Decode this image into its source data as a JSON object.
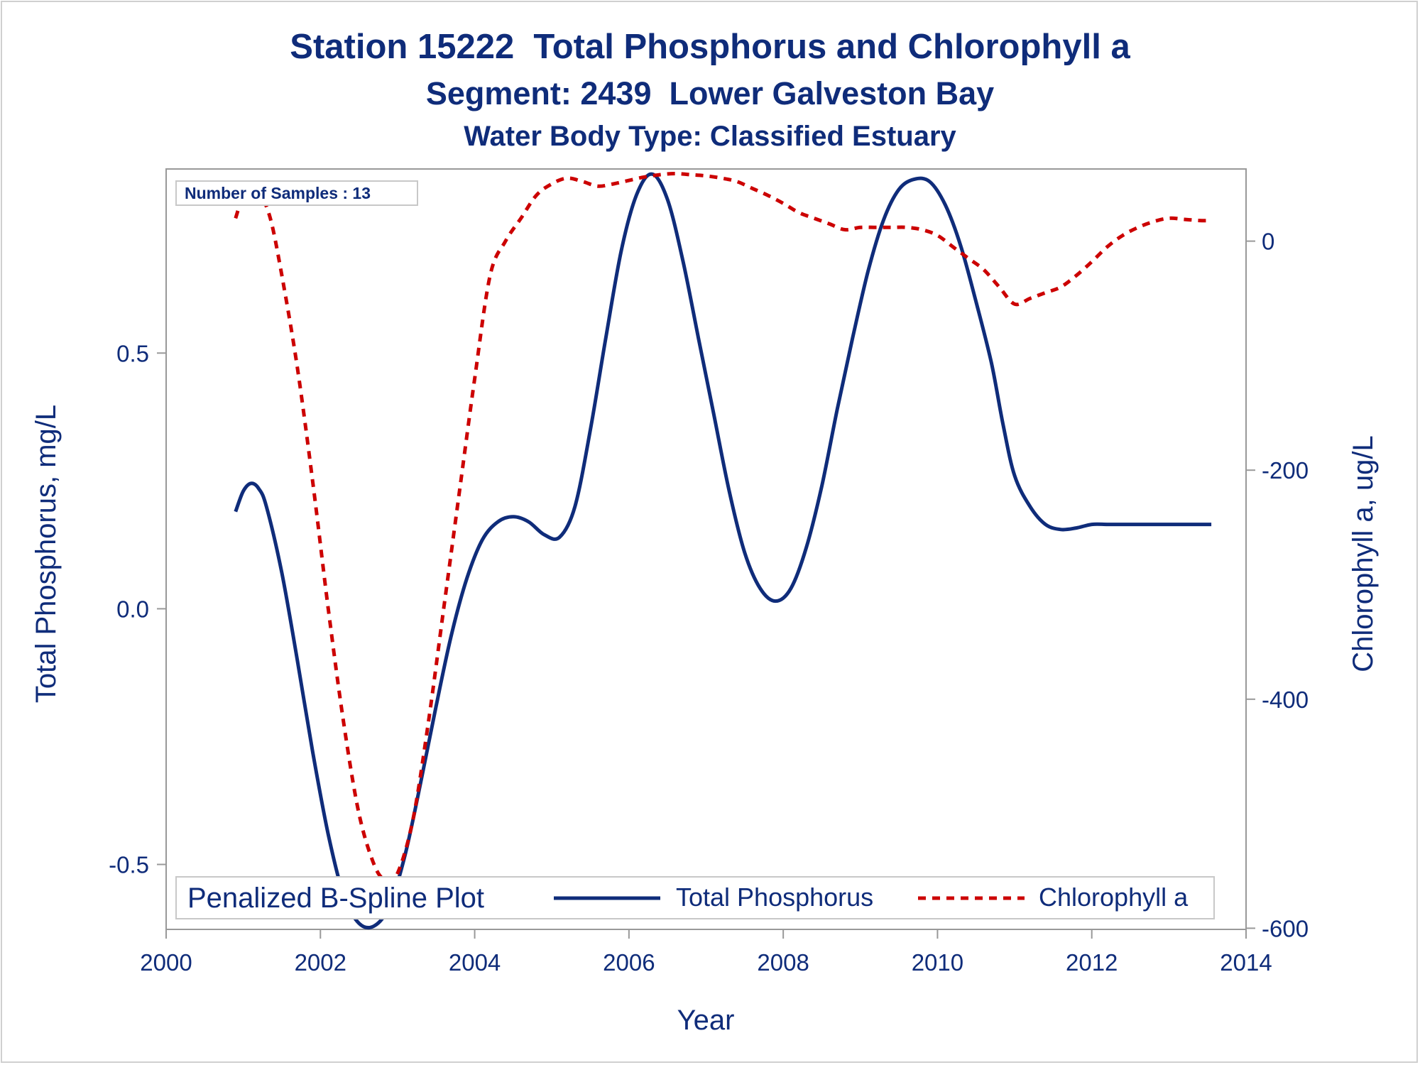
{
  "titles": {
    "line1": "Station 15222  Total Phosphorus and Chlorophyll a",
    "line2": "Segment: 2439  Lower Galveston Bay",
    "line3": "Water Body Type: Classified Estuary"
  },
  "chart_data": {
    "type": "line",
    "xlabel": "Year",
    "ylabel_left": "Total Phosphorus, mg/L",
    "ylabel_right": "Chlorophyll a, ug/L",
    "xlim": [
      2000,
      2014
    ],
    "ylim_left": [
      -0.627,
      0.86
    ],
    "ylim_right": [
      -601,
      63
    ],
    "x_ticks": [
      2000,
      2002,
      2004,
      2006,
      2008,
      2010,
      2012,
      2014
    ],
    "y_left_ticks": [
      {
        "value": -0.5,
        "label": "-0.5"
      },
      {
        "value": 0.0,
        "label": "0.0"
      },
      {
        "value": 0.5,
        "label": "0.5"
      }
    ],
    "y_right_ticks": [
      {
        "value": -600,
        "label": "-600"
      },
      {
        "value": -400,
        "label": "-400"
      },
      {
        "value": -200,
        "label": "-200"
      },
      {
        "value": 0,
        "label": "0"
      }
    ],
    "annotation": "Number of Samples : 13",
    "legend": {
      "title": "Penalized B-Spline Plot",
      "position": "bottom-inside"
    },
    "grid": false,
    "colors": {
      "text": "#0f2c7a",
      "phosphorus": "#0f2c7a",
      "chlorophyll": "#cc0000",
      "axis": "#999999"
    },
    "series": [
      {
        "name": "Total Phosphorus",
        "axis": "left",
        "style": "solid",
        "color": "#0f2c7a",
        "x": [
          2000.9,
          2001.0,
          2001.1,
          2001.2,
          2001.3,
          2001.5,
          2001.7,
          2001.9,
          2002.1,
          2002.3,
          2002.5,
          2002.7,
          2002.9,
          2003.1,
          2003.3,
          2003.5,
          2003.7,
          2003.9,
          2004.1,
          2004.3,
          2004.5,
          2004.7,
          2004.9,
          2005.1,
          2005.3,
          2005.5,
          2005.7,
          2005.9,
          2006.1,
          2006.3,
          2006.5,
          2006.7,
          2006.9,
          2007.1,
          2007.3,
          2007.5,
          2007.7,
          2007.9,
          2008.1,
          2008.3,
          2008.5,
          2008.7,
          2008.9,
          2009.1,
          2009.3,
          2009.5,
          2009.7,
          2009.9,
          2010.1,
          2010.3,
          2010.5,
          2010.7,
          2010.85,
          2011.0,
          2011.2,
          2011.4,
          2011.6,
          2011.8,
          2012.0,
          2012.2,
          2012.4,
          2012.6,
          2012.8,
          2013.0,
          2013.2,
          2013.4,
          2013.55
        ],
        "values": [
          0.19,
          0.23,
          0.245,
          0.235,
          0.2,
          0.07,
          -0.1,
          -0.28,
          -0.44,
          -0.56,
          -0.615,
          -0.62,
          -0.58,
          -0.48,
          -0.34,
          -0.19,
          -0.05,
          0.06,
          0.135,
          0.17,
          0.18,
          0.17,
          0.145,
          0.14,
          0.2,
          0.35,
          0.53,
          0.7,
          0.81,
          0.85,
          0.8,
          0.68,
          0.53,
          0.38,
          0.23,
          0.11,
          0.04,
          0.015,
          0.04,
          0.12,
          0.24,
          0.39,
          0.53,
          0.66,
          0.76,
          0.82,
          0.84,
          0.835,
          0.79,
          0.71,
          0.6,
          0.48,
          0.36,
          0.26,
          0.2,
          0.165,
          0.155,
          0.158,
          0.165,
          0.165,
          0.165,
          0.165,
          0.165,
          0.165,
          0.165,
          0.165,
          0.165
        ]
      },
      {
        "name": "Chlorophyll a",
        "axis": "right",
        "style": "dashed",
        "color": "#cc0000",
        "x": [
          2000.9,
          2001.0,
          2001.1,
          2001.2,
          2001.35,
          2001.5,
          2001.7,
          2001.9,
          2002.1,
          2002.3,
          2002.5,
          2002.7,
          2002.85,
          2003.0,
          2003.2,
          2003.4,
          2003.6,
          2003.8,
          2004.0,
          2004.2,
          2004.4,
          2004.6,
          2004.8,
          2005.0,
          2005.2,
          2005.4,
          2005.6,
          2005.8,
          2006.0,
          2006.2,
          2006.4,
          2006.6,
          2006.8,
          2007.0,
          2007.2,
          2007.4,
          2007.6,
          2007.8,
          2008.0,
          2008.2,
          2008.4,
          2008.6,
          2008.8,
          2009.0,
          2009.2,
          2009.4,
          2009.6,
          2009.8,
          2010.0,
          2010.2,
          2010.4,
          2010.6,
          2010.8,
          2011.0,
          2011.2,
          2011.4,
          2011.6,
          2011.8,
          2012.0,
          2012.2,
          2012.4,
          2012.6,
          2012.8,
          2013.0,
          2013.2,
          2013.4,
          2013.55
        ],
        "values": [
          20,
          40,
          48,
          44,
          20,
          -30,
          -110,
          -210,
          -320,
          -420,
          -500,
          -545,
          -558,
          -552,
          -505,
          -420,
          -320,
          -220,
          -120,
          -30,
          0,
          20,
          40,
          50,
          55,
          52,
          48,
          50,
          53,
          56,
          58,
          59,
          58,
          57,
          55,
          52,
          46,
          40,
          33,
          25,
          20,
          15,
          10,
          12,
          12,
          12,
          12,
          10,
          5,
          -5,
          -15,
          -25,
          -40,
          -55,
          -50,
          -45,
          -40,
          -30,
          -18,
          -5,
          5,
          12,
          17,
          20,
          19,
          18,
          18
        ]
      }
    ]
  }
}
